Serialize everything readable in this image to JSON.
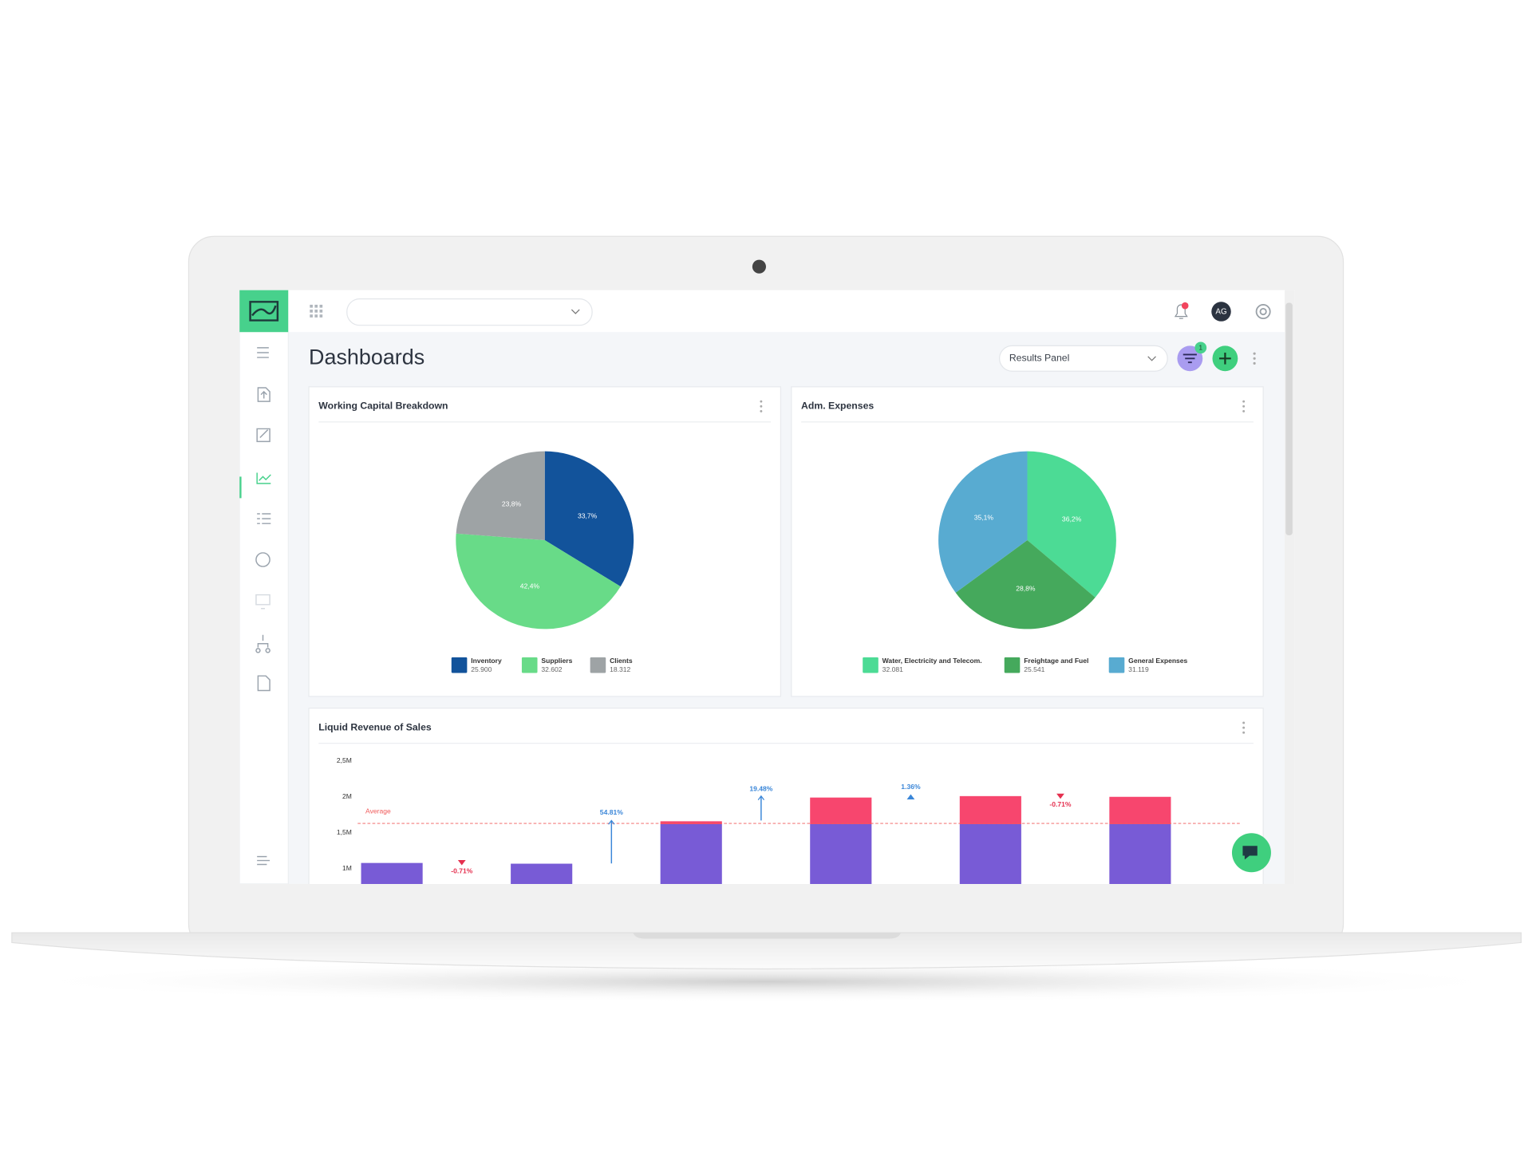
{
  "header": {
    "title": "Dashboards",
    "panel_select": "Results Panel",
    "avatar": "AG",
    "filter_badge": "1"
  },
  "chart_data": [
    {
      "type": "pie",
      "title": "Working Capital Breakdown",
      "categories": [
        "Inventory",
        "Suppliers",
        "Clients"
      ],
      "values": [
        33.7,
        42.4,
        23.8
      ],
      "value_labels": [
        "33,7%",
        "42,4%",
        "23,8%"
      ],
      "colors": [
        "#12539b",
        "#68db88",
        "#9ea3a5"
      ],
      "legend_values": [
        "25.900",
        "32.602",
        "18.312"
      ]
    },
    {
      "type": "pie",
      "title": "Adm. Expenses",
      "categories": [
        "Water, Electricity and Telecom.",
        "Freightage and Fuel",
        "General Expenses"
      ],
      "values": [
        36.2,
        28.8,
        35.1
      ],
      "value_labels": [
        "36,2%",
        "28,8%",
        "35,1%"
      ],
      "colors": [
        "#4cdb95",
        "#45a95c",
        "#58abd1"
      ],
      "legend_values": [
        "32.081",
        "25.541",
        "31.119"
      ]
    },
    {
      "type": "bar",
      "stacked": true,
      "title": "Liquid Revenue of Sales",
      "ylim": [
        0,
        2500000
      ],
      "yticks": [
        {
          "value": 1000000,
          "label": "1M"
        },
        {
          "value": 1500000,
          "label": "1,5M"
        },
        {
          "value": 2000000,
          "label": "2M"
        },
        {
          "value": 2500000,
          "label": "2,5M"
        }
      ],
      "series": [
        {
          "color": "#785bd6",
          "values": [
            1080000,
            1070000,
            1620000,
            1620000,
            1620000,
            1620000
          ]
        },
        {
          "color": "#f7466e",
          "values": [
            0,
            0,
            40000,
            370000,
            390000,
            380000
          ]
        }
      ],
      "average": {
        "label": "Average",
        "value": 1630000,
        "color": "#f05a5a"
      },
      "changes": [
        -0.71,
        54.81,
        19.48,
        1.36,
        -0.71
      ],
      "change_labels": [
        "-0.71%",
        "54.81%",
        "19.48%",
        "1.36%",
        "-0.71%"
      ]
    }
  ]
}
